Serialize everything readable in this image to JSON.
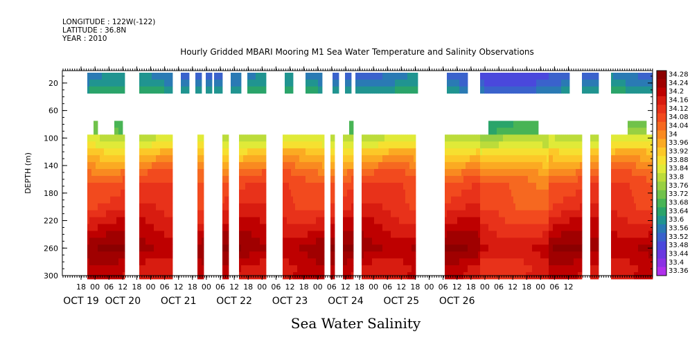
{
  "header": {
    "longitude": "LONGITUDE : 122W(-122)",
    "latitude": "LATITUDE : 36.8N",
    "year": "YEAR : 2010"
  },
  "chart_data": {
    "type": "heatmap",
    "title": "Hourly Gridded MBARI Mooring M1 Sea Water Temperature and Salinity Observations",
    "variable_title": "Sea Water Salinity",
    "ylabel": "DEPTH (m)",
    "ylim": [
      300,
      0
    ],
    "y_ticks": [
      20,
      60,
      100,
      140,
      180,
      220,
      260,
      300
    ],
    "x_hour_ticks": [
      "18",
      "00",
      "06",
      "12",
      "18",
      "00",
      "06",
      "12",
      "18",
      "00",
      "06",
      "12",
      "18",
      "00",
      "06",
      "12",
      "18",
      "00",
      "06",
      "12",
      "18",
      "00",
      "06",
      "12",
      "18",
      "00",
      "06",
      "12",
      "18",
      "00",
      "06",
      "12",
      "18",
      "00",
      "06",
      "12"
    ],
    "x_day_labels": [
      "OCT 19",
      "OCT 20",
      "OCT 21",
      "OCT 22",
      "OCT 23",
      "OCT 24",
      "OCT 25",
      "OCT 26"
    ],
    "colorbar": {
      "levels": [
        "34.28",
        "34.24",
        "34.2",
        "34.16",
        "34.12",
        "34.08",
        "34.04",
        "34",
        "33.96",
        "33.92",
        "33.88",
        "33.84",
        "33.8",
        "33.76",
        "33.72",
        "33.68",
        "33.64",
        "33.6",
        "33.56",
        "33.52",
        "33.48",
        "33.44",
        "33.4",
        "33.36"
      ],
      "colors": [
        "#8b0000",
        "#a00000",
        "#be0000",
        "#d81c10",
        "#e8321a",
        "#f24a1e",
        "#f66820",
        "#f98a20",
        "#fbaa22",
        "#fcc828",
        "#f6e030",
        "#e0ea38",
        "#bcdc3a",
        "#98d042",
        "#70c24a",
        "#48b455",
        "#2aa46a",
        "#209490",
        "#2a7ab4",
        "#3a62cc",
        "#4a48dc",
        "#6a38e0",
        "#8c32e4",
        "#b030ec"
      ]
    },
    "depths_m": [
      10,
      20,
      30,
      40,
      50,
      60,
      70,
      80,
      90,
      100,
      110,
      120,
      130,
      140,
      150,
      160,
      170,
      180,
      190,
      200,
      210,
      220,
      230,
      240,
      250,
      260,
      270,
      280,
      290,
      300
    ],
    "profile_typical": [
      33.56,
      33.58,
      33.62,
      null,
      null,
      null,
      null,
      33.7,
      33.72,
      33.82,
      33.86,
      33.92,
      33.96,
      34.0,
      34.04,
      34.07,
      34.09,
      34.1,
      34.11,
      34.12,
      34.14,
      34.16,
      34.18,
      34.2,
      34.22,
      34.24,
      34.22,
      34.2,
      34.18,
      34.18
    ],
    "surface_range": [
      33.36,
      33.64
    ],
    "deep_range": [
      33.7,
      34.28
    ],
    "data_gaps_note": ""
  }
}
